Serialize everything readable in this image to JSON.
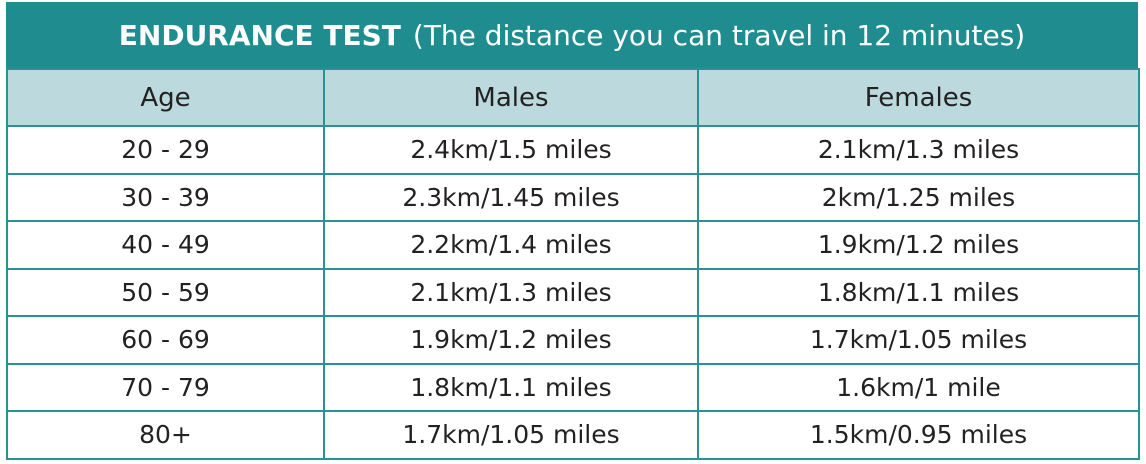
{
  "title": {
    "bold": "ENDURANCE TEST",
    "rest": "(The distance you can travel in 12 minutes)"
  },
  "table": {
    "header": [
      "Age",
      "Males",
      "Females"
    ],
    "rows": [
      [
        "20 - 29",
        "2.4km/1.5 miles",
        "2.1km/1.3 miles"
      ],
      [
        "30 - 39",
        "2.3km/1.45 miles",
        "2km/1.25 miles"
      ],
      [
        "40 - 49",
        "2.2km/1.4 miles",
        "1.9km/1.2 miles"
      ],
      [
        "50 - 59",
        "2.1km/1.3 miles",
        "1.8km/1.1 miles"
      ],
      [
        "60 - 69",
        "1.9km/1.2 miles",
        "1.7km/1.05 miles"
      ],
      [
        "70 - 79",
        "1.8km/1.1 miles",
        "1.6km/1 mile"
      ],
      [
        "80+",
        "1.7km/1.05 miles",
        "1.5km/0.95 miles"
      ]
    ]
  }
}
